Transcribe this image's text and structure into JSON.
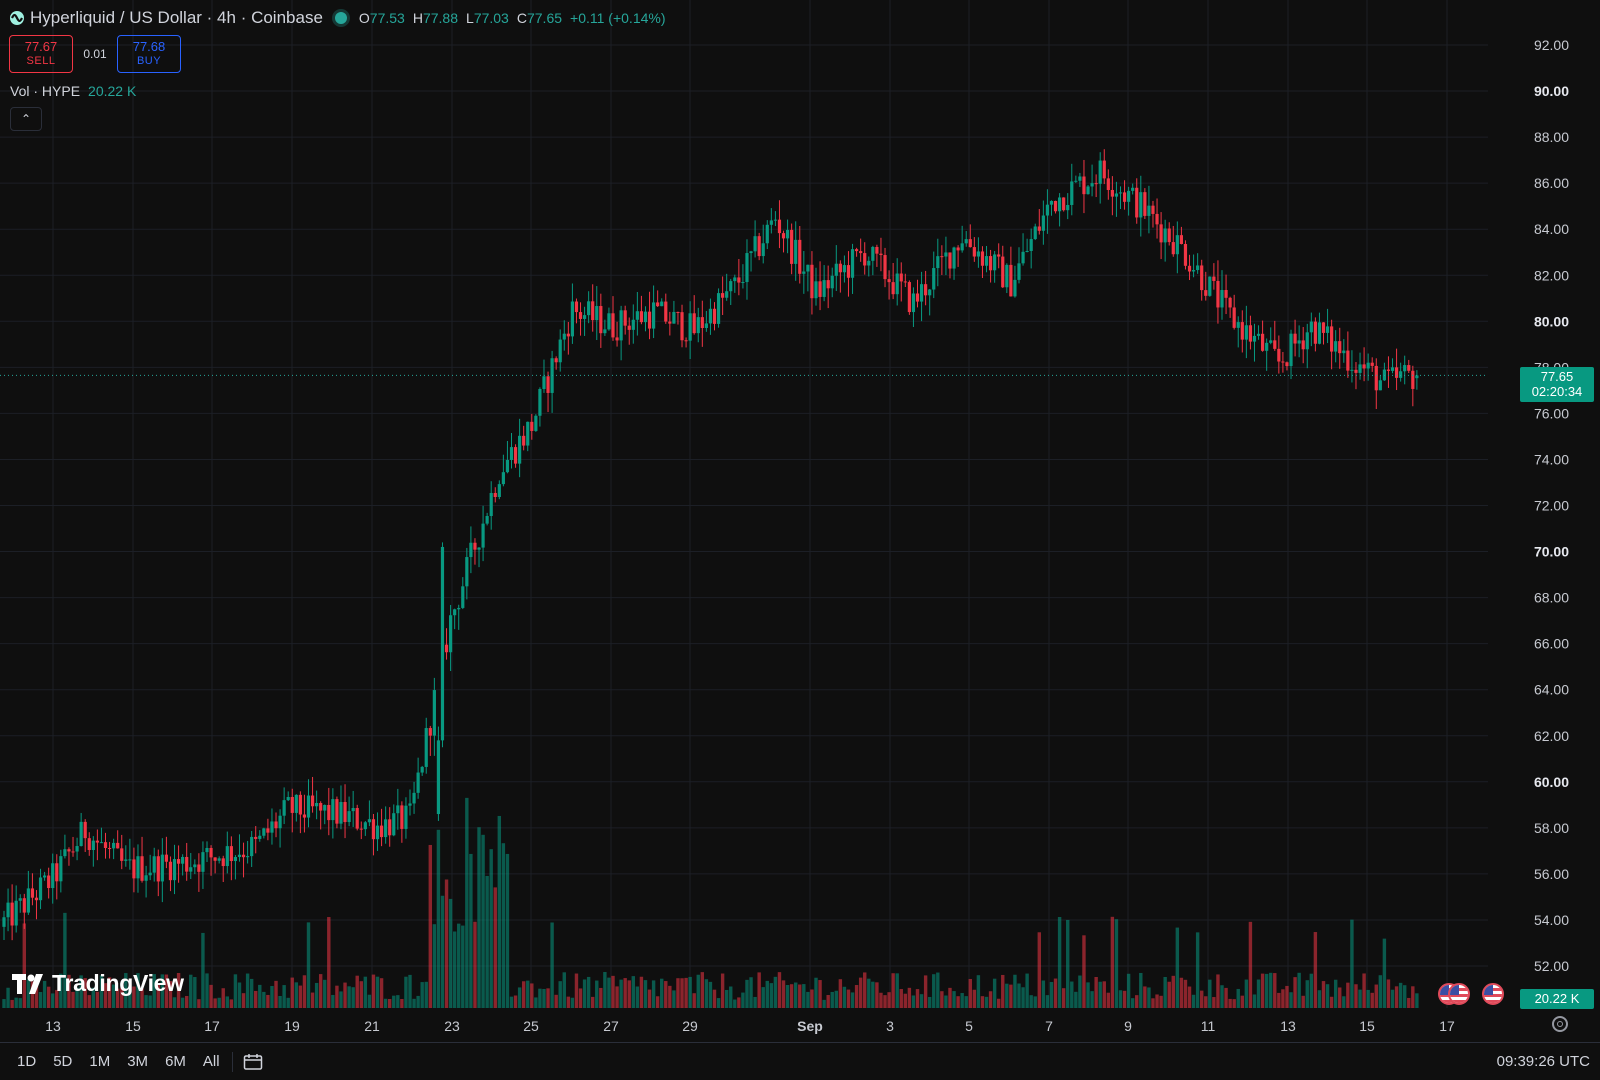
{
  "header": {
    "title": "Hyperliquid / US Dollar · 4h · Coinbase",
    "o_label": "O",
    "o": "77.53",
    "h_label": "H",
    "h": "77.88",
    "l_label": "L",
    "l": "77.03",
    "c_label": "C",
    "c": "77.65",
    "change": "+0.11 (+0.14%)"
  },
  "trade": {
    "sell_price": "77.67",
    "sell_label": "SELL",
    "spread": "0.01",
    "buy_price": "77.68",
    "buy_label": "BUY"
  },
  "volume_label": {
    "name": "Vol · HYPE",
    "value": "20.22 K"
  },
  "collapse_icon": "chevron-up-icon",
  "last_price_tag": {
    "price": "77.65",
    "countdown": "02:20:34"
  },
  "volume_tag": "20.22 K",
  "logo_text": "TradingView",
  "ranges": [
    "1D",
    "5D",
    "1M",
    "3M",
    "6M",
    "All"
  ],
  "clock": "09:39:26 UTC",
  "colors": {
    "up": "#089981",
    "down": "#f23645",
    "background": "#0f0f0f",
    "grid": "#1c1f26"
  },
  "chart_data": {
    "type": "candlestick",
    "title": "Hyperliquid / US Dollar · 4h · Coinbase",
    "ylim": [
      50.5,
      93.0
    ],
    "y_ticks": [
      "52.00",
      "54.00",
      "56.00",
      "58.00",
      "60.00",
      "62.00",
      "64.00",
      "66.00",
      "68.00",
      "70.00",
      "72.00",
      "74.00",
      "76.00",
      "78.00",
      "80.00",
      "82.00",
      "84.00",
      "86.00",
      "88.00",
      "90.00",
      "92.00"
    ],
    "x_tick_labels": [
      "13",
      "15",
      "17",
      "19",
      "21",
      "23",
      "25",
      "27",
      "29",
      "Sep",
      "3",
      "5",
      "7",
      "9",
      "11",
      "13",
      "15",
      "17"
    ],
    "keypoints_close": [
      [
        0,
        53.9
      ],
      [
        12,
        55.8
      ],
      [
        20,
        57.9
      ],
      [
        30,
        56.2
      ],
      [
        45,
        56.5
      ],
      [
        62,
        57.2
      ],
      [
        70,
        58.8
      ],
      [
        82,
        58.6
      ],
      [
        92,
        58.1
      ],
      [
        100,
        58.4
      ],
      [
        110,
        67
      ],
      [
        122,
        73.5
      ],
      [
        130,
        75.5
      ],
      [
        140,
        80.5
      ],
      [
        150,
        79.8
      ],
      [
        160,
        80.4
      ],
      [
        170,
        79.6
      ],
      [
        180,
        81.5
      ],
      [
        190,
        84.5
      ],
      [
        200,
        81.2
      ],
      [
        212,
        83
      ],
      [
        224,
        80.8
      ],
      [
        236,
        83.7
      ],
      [
        248,
        81.7
      ],
      [
        258,
        85.2
      ],
      [
        270,
        86.5
      ],
      [
        280,
        85
      ],
      [
        290,
        83.2
      ],
      [
        302,
        80.2
      ],
      [
        314,
        78.2
      ],
      [
        322,
        79.8
      ],
      [
        332,
        78.3
      ],
      [
        340,
        77.3
      ],
      [
        345,
        77.6
      ],
      [
        348,
        77.65
      ]
    ],
    "volume_units": "K",
    "last": {
      "open": 77.53,
      "high": 77.88,
      "low": 77.03,
      "close": 77.65,
      "volume": 20.22
    }
  }
}
